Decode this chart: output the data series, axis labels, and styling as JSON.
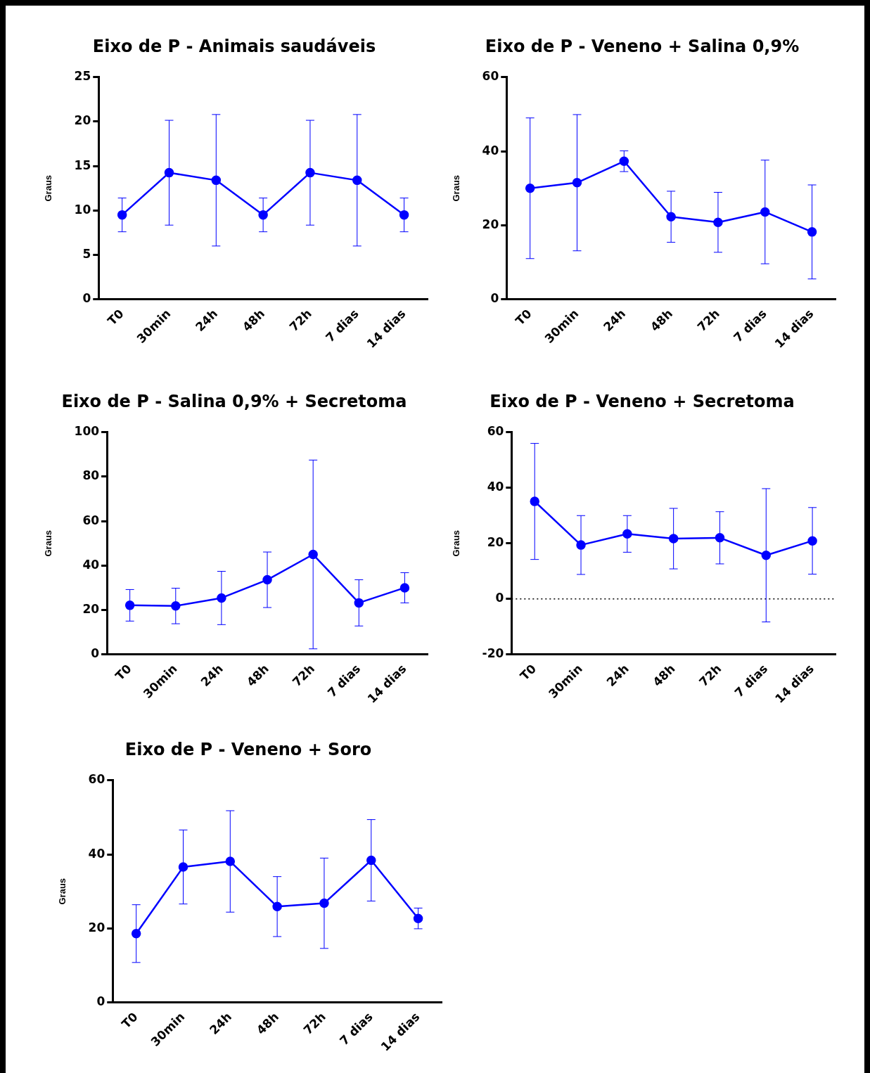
{
  "chart_data": [
    {
      "type": "line",
      "title": "Eixo de P - Animais saudáveis",
      "ylabel": "Graus",
      "categories": [
        "T0",
        "30min",
        "24h",
        "48h",
        "72h",
        "7 dias",
        "14 dias"
      ],
      "ylim": [
        0,
        25
      ],
      "yticks": [
        0,
        5,
        10,
        15,
        20,
        25
      ],
      "marker": "circle",
      "series": [
        {
          "color": "#0000ff",
          "values": [
            9.5,
            14.25,
            13.4,
            9.5,
            14.25,
            13.4,
            9.5
          ],
          "errors": [
            1.9,
            5.9,
            7.4,
            1.9,
            5.9,
            7.4,
            1.9
          ]
        }
      ]
    },
    {
      "type": "line",
      "title": "Eixo de P - Veneno + Salina 0,9%",
      "ylabel": "Graus",
      "categories": [
        "T0",
        "30min",
        "24h",
        "48h",
        "72h",
        "7 dias",
        "14 dias"
      ],
      "ylim": [
        0,
        60
      ],
      "yticks": [
        0,
        20,
        40,
        60
      ],
      "marker": "circle",
      "series": [
        {
          "color": "#0000ff",
          "values": [
            30,
            31.5,
            37.3,
            22.3,
            20.8,
            23.6,
            18.2
          ],
          "errors": [
            19,
            18.4,
            2.8,
            6.9,
            8.1,
            14,
            12.7
          ]
        }
      ]
    },
    {
      "type": "line",
      "title": "Eixo de P - Salina 0,9% + Secretoma",
      "ylabel": "Graus",
      "categories": [
        "T0",
        "30min",
        "24h",
        "48h",
        "72h",
        "7 dias",
        "14 dias"
      ],
      "ylim": [
        0,
        100
      ],
      "yticks": [
        0,
        20,
        40,
        60,
        80,
        100
      ],
      "marker": "circle",
      "series": [
        {
          "color": "#0000ff",
          "values": [
            22.1,
            21.8,
            25.4,
            33.6,
            45,
            23.2,
            30
          ],
          "errors": [
            7.1,
            8,
            12,
            12.5,
            42.5,
            10.4,
            6.8
          ]
        }
      ]
    },
    {
      "type": "line",
      "title": "Eixo de P - Veneno + Secretoma",
      "ylabel": "Graus",
      "categories": [
        "T0",
        "30min",
        "24h",
        "48h",
        "72h",
        "7 dias",
        "14 dias"
      ],
      "ylim": [
        -20,
        60
      ],
      "yticks": [
        -20,
        0,
        20,
        40,
        60
      ],
      "marker": "circle",
      "ref_lines": [
        {
          "axis": "y",
          "value": 0,
          "color": "#000000",
          "line_style": "dotted"
        }
      ],
      "series": [
        {
          "color": "#0000ff",
          "values": [
            35.1,
            19.4,
            23.4,
            21.7,
            22,
            15.7,
            20.9
          ],
          "errors": [
            20.9,
            10.6,
            6.6,
            10.9,
            9.4,
            24,
            12
          ]
        }
      ]
    },
    {
      "type": "line",
      "title": "Eixo de P - Veneno + Soro",
      "ylabel": "Graus",
      "categories": [
        "T0",
        "30min",
        "24h",
        "48h",
        "72h",
        "7 dias",
        "14 dias"
      ],
      "ylim": [
        0,
        60
      ],
      "yticks": [
        0,
        20,
        40,
        60
      ],
      "marker": "circle",
      "series": [
        {
          "color": "#0000ff",
          "values": [
            18.6,
            36.6,
            38.1,
            25.9,
            26.8,
            38.4,
            22.7
          ],
          "errors": [
            7.8,
            10,
            13.7,
            8.1,
            12.2,
            11,
            2.8
          ]
        }
      ]
    }
  ]
}
